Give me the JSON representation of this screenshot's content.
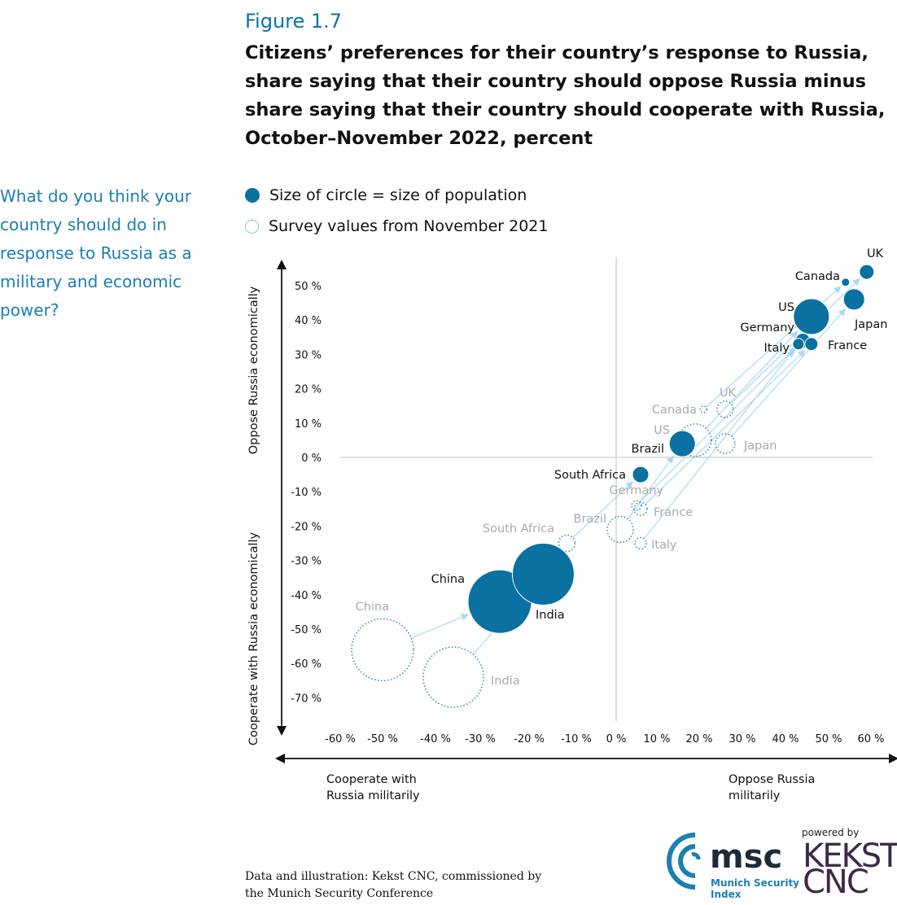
{
  "figure_number": "Figure 1.7",
  "figure_title": "Citizens’ preferences for their country’s response to Russia, share saying that their country should oppose Russia minus share saying that their country should cooperate with Russia, October–November 2022, percent",
  "side_question": "What do you think your country should do in response to Russia as a military and economic power?",
  "legend": {
    "filled": "Size of circle = size of population",
    "dotted": "Survey values from November 2021"
  },
  "colors": {
    "current": "#0a71a1",
    "previous": "#1a7fb5",
    "arrow": "#a9d9f3",
    "axis": "#d8d4d0",
    "past_label": "#aaaaaa"
  },
  "chart_data": {
    "type": "scatter",
    "title": "",
    "xlabel_left": "Cooperate with Russia militarily",
    "xlabel_right": "Oppose Russia militarily",
    "ylabel_top": "Oppose Russia economically",
    "ylabel_bottom": "Cooperate with Russia economically",
    "xlim": [
      -60,
      60
    ],
    "ylim": [
      -70,
      50
    ],
    "x_ticks": [
      "-60 %",
      "-50 %",
      "-40 %",
      "-30 %",
      "-20 %",
      "-10 %",
      "0 %",
      "10 %",
      "20 %",
      "30 %",
      "40 %",
      "50 %",
      "60 %"
    ],
    "y_ticks": [
      "50 %",
      "40 %",
      "30 %",
      "20 %",
      "10 %",
      "0 %",
      "-10 %",
      "-20 %",
      "-30 %",
      "-40 %",
      "-50 %",
      "-60 %",
      "-70 %"
    ],
    "series": [
      {
        "name": "October–November 2022",
        "points": [
          {
            "label": "UK",
            "x": 59,
            "y": 54
          },
          {
            "label": "Canada",
            "x": 54,
            "y": 51
          },
          {
            "label": "US",
            "x": 46,
            "y": 41
          },
          {
            "label": "Japan",
            "x": 56,
            "y": 46
          },
          {
            "label": "Germany",
            "x": 44,
            "y": 34
          },
          {
            "label": "Italy",
            "x": 43,
            "y": 33
          },
          {
            "label": "France",
            "x": 46,
            "y": 33
          },
          {
            "label": "Brazil",
            "x": 16,
            "y": 4
          },
          {
            "label": "South Africa",
            "x": 6,
            "y": -5
          },
          {
            "label": "China",
            "x": -26,
            "y": -42
          },
          {
            "label": "India",
            "x": -17,
            "y": -34
          }
        ]
      },
      {
        "name": "Survey values from November 2021",
        "points": [
          {
            "label": "UK",
            "x": 26,
            "y": 14
          },
          {
            "label": "Canada",
            "x": 21,
            "y": 14
          },
          {
            "label": "US",
            "x": 19,
            "y": 5
          },
          {
            "label": "Japan",
            "x": 26,
            "y": 4
          },
          {
            "label": "Germany",
            "x": 5,
            "y": -14
          },
          {
            "label": "France",
            "x": 6,
            "y": -15
          },
          {
            "label": "Brazil",
            "x": 1,
            "y": -21
          },
          {
            "label": "Italy",
            "x": 6,
            "y": -25
          },
          {
            "label": "South Africa",
            "x": -12,
            "y": -25
          },
          {
            "label": "China",
            "x": -50,
            "y": -56
          },
          {
            "label": "India",
            "x": -36,
            "y": -64
          }
        ]
      }
    ]
  },
  "source": "Data and illustration: Kekst CNC, commissioned by the Munich Security Conference",
  "logos": {
    "msc": "msc",
    "msc_sub": "Munich Security Index",
    "powered_by": "powered by",
    "kekst": "KEKST CNC"
  }
}
